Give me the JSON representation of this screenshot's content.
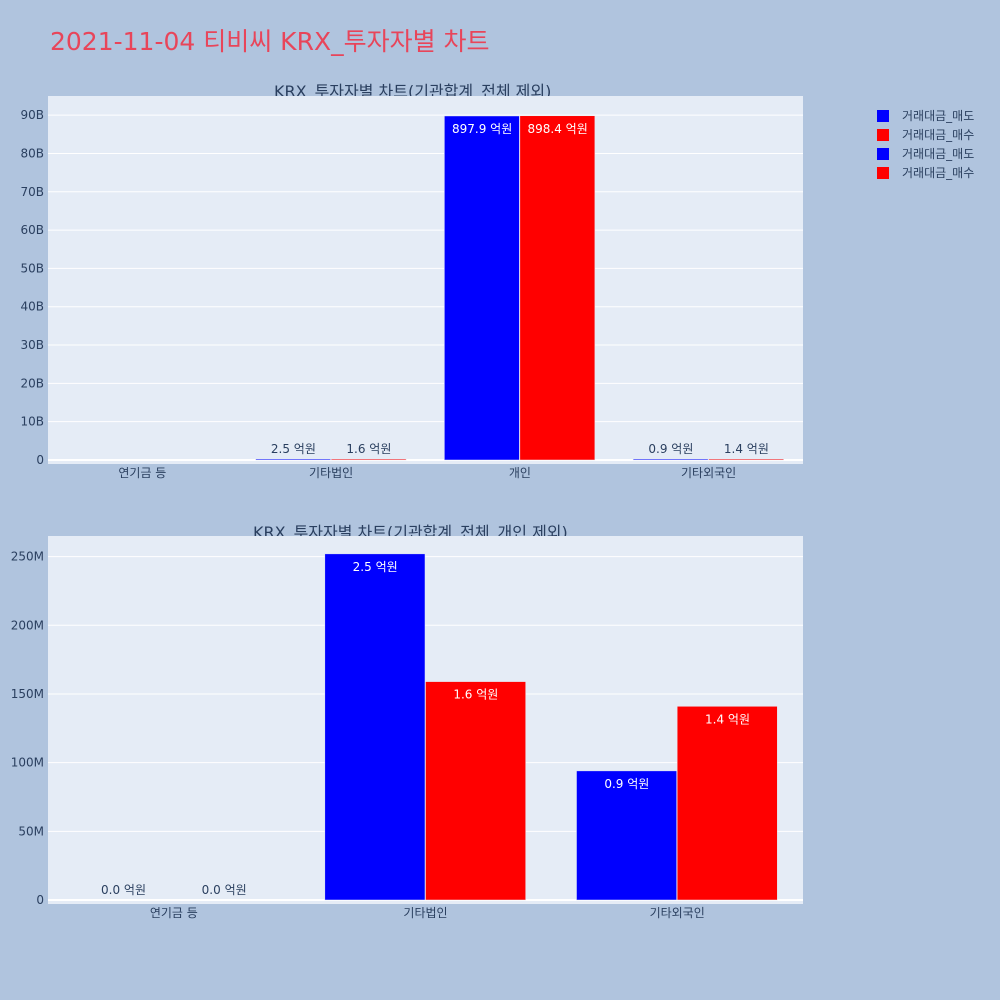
{
  "page": {
    "title": "2021-11-04 티비씨 KRX_투자자별 차트"
  },
  "colors": {
    "sell": "#0000ff",
    "buy": "#ff0000",
    "plot_bg": "#e5ecf6",
    "paper_bg": "#b0c4de"
  },
  "legend": {
    "items": [
      {
        "label": "거래대금_매도",
        "color": "#0000ff"
      },
      {
        "label": "거래대금_매수",
        "color": "#ff0000"
      },
      {
        "label": "거래대금_매도",
        "color": "#0000ff"
      },
      {
        "label": "거래대금_매수",
        "color": "#ff0000"
      }
    ]
  },
  "chart_data": [
    {
      "type": "bar",
      "title": "KRX_투자자별 차트(기관합계_전체 제외)",
      "categories": [
        "연기금 등",
        "기타법인",
        "개인",
        "기타외국인"
      ],
      "ylim": [
        0,
        95000000000
      ],
      "yticks": [
        {
          "value": 0,
          "label": "0"
        },
        {
          "value": 10000000000,
          "label": "10B"
        },
        {
          "value": 20000000000,
          "label": "20B"
        },
        {
          "value": 30000000000,
          "label": "30B"
        },
        {
          "value": 40000000000,
          "label": "40B"
        },
        {
          "value": 50000000000,
          "label": "50B"
        },
        {
          "value": 60000000000,
          "label": "60B"
        },
        {
          "value": 70000000000,
          "label": "70B"
        },
        {
          "value": 80000000000,
          "label": "80B"
        },
        {
          "value": 90000000000,
          "label": "90B"
        }
      ],
      "grid": true,
      "series": [
        {
          "name": "거래대금_매도",
          "color": "#0000ff",
          "values": [
            0,
            250000000,
            89790000000,
            90000000
          ],
          "labels": [
            "",
            "2.5 억원",
            "897.9 억원",
            "0.9 억원"
          ]
        },
        {
          "name": "거래대금_매수",
          "color": "#ff0000",
          "values": [
            0,
            160000000,
            89840000000,
            140000000
          ],
          "labels": [
            "",
            "1.6 억원",
            "898.4 억원",
            "1.4 억원"
          ]
        }
      ]
    },
    {
      "type": "bar",
      "title": "KRX_투자자별 차트(기관합계_전체_개인 제외)",
      "categories": [
        "연기금 등",
        "기타법인",
        "기타외국인"
      ],
      "ylim": [
        0,
        265000000
      ],
      "yticks": [
        {
          "value": 0,
          "label": "0"
        },
        {
          "value": 50000000,
          "label": "50M"
        },
        {
          "value": 100000000,
          "label": "100M"
        },
        {
          "value": 150000000,
          "label": "150M"
        },
        {
          "value": 200000000,
          "label": "200M"
        },
        {
          "value": 250000000,
          "label": "250M"
        }
      ],
      "grid": true,
      "series": [
        {
          "name": "거래대금_매도",
          "color": "#0000ff",
          "values": [
            0,
            252000000,
            94000000
          ],
          "labels": [
            "0.0 억원",
            "2.5 억원",
            "0.9 억원"
          ]
        },
        {
          "name": "거래대금_매수",
          "color": "#ff0000",
          "values": [
            0,
            159000000,
            141000000
          ],
          "labels": [
            "0.0 억원",
            "1.6 억원",
            "1.4 억원"
          ]
        }
      ]
    }
  ]
}
